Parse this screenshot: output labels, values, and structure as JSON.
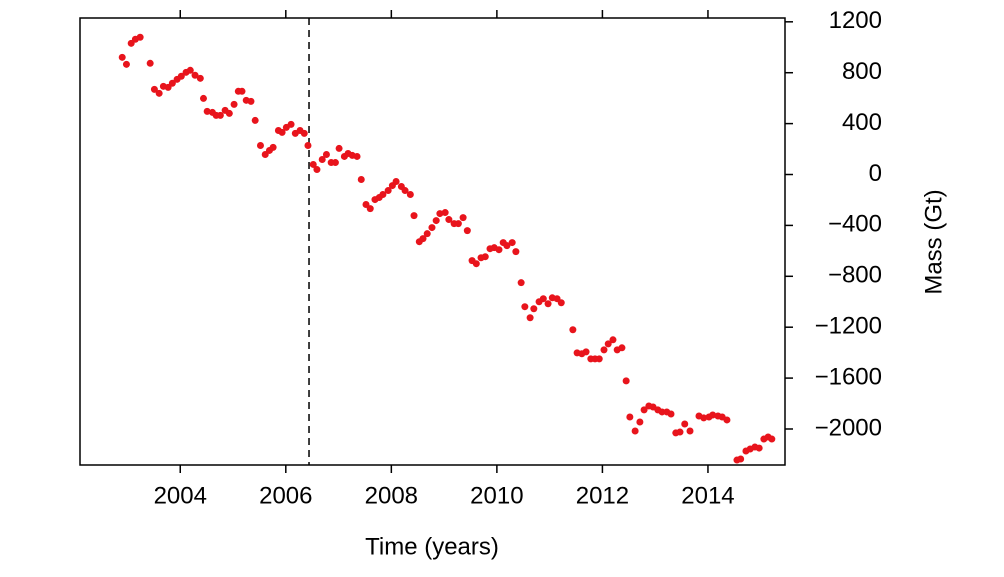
{
  "chart_data": {
    "type": "scatter",
    "x_label": "Time (years)",
    "y_label": "Mass (Gt)",
    "color": "#e8141c",
    "xlim": [
      2002.1,
      2015.46
    ],
    "ylim": [
      -2283,
      1230
    ],
    "xticks": [
      2004,
      2006,
      2008,
      2010,
      2012,
      2014
    ],
    "yticks": [
      {
        "value": -2000,
        "label": "−2000"
      },
      {
        "value": -1600,
        "label": "−1600"
      },
      {
        "value": -1200,
        "label": "−1200"
      },
      {
        "value": -800,
        "label": "−800"
      },
      {
        "value": -400,
        "label": "−400"
      },
      0,
      400,
      800,
      1200
    ],
    "reference_x": 2006.44,
    "x": [
      2002.9,
      2002.98,
      2003.07,
      2003.15,
      2003.24,
      2003.43,
      2003.51,
      2003.6,
      2003.68,
      2003.77,
      2003.85,
      2003.94,
      2004.02,
      2004.11,
      2004.19,
      2004.28,
      2004.38,
      2004.44,
      2004.51,
      2004.61,
      2004.68,
      2004.76,
      2004.85,
      2004.93,
      2005.02,
      2005.1,
      2005.17,
      2005.25,
      2005.34,
      2005.42,
      2005.52,
      2005.61,
      2005.69,
      2005.76,
      2005.86,
      2005.93,
      2006.01,
      2006.1,
      2006.18,
      2006.27,
      2006.35,
      2006.42,
      2006.52,
      2006.59,
      2006.69,
      2006.77,
      2006.86,
      2006.94,
      2007.01,
      2007.11,
      2007.18,
      2007.26,
      2007.35,
      2007.43,
      2007.52,
      2007.6,
      2007.69,
      2007.77,
      2007.84,
      2007.94,
      2008.02,
      2008.09,
      2008.19,
      2008.26,
      2008.36,
      2008.43,
      2008.53,
      2008.6,
      2008.68,
      2008.77,
      2008.85,
      2008.92,
      2009.02,
      2009.09,
      2009.19,
      2009.27,
      2009.36,
      2009.44,
      2009.53,
      2009.61,
      2009.7,
      2009.78,
      2009.87,
      2009.95,
      2010.04,
      2010.12,
      2010.19,
      2010.29,
      2010.36,
      2010.46,
      2010.53,
      2010.63,
      2010.7,
      2010.8,
      2010.88,
      2010.97,
      2011.05,
      2011.14,
      2011.22,
      2011.44,
      2011.52,
      2011.61,
      2011.69,
      2011.78,
      2011.86,
      2011.94,
      2012.03,
      2012.11,
      2012.2,
      2012.28,
      2012.37,
      2012.45,
      2012.52,
      2012.62,
      2012.71,
      2012.79,
      2012.88,
      2012.96,
      2013.05,
      2013.13,
      2013.22,
      2013.3,
      2013.39,
      2013.47,
      2013.56,
      2013.66,
      2013.83,
      2013.92,
      2014.02,
      2014.09,
      2014.19,
      2014.27,
      2014.36,
      2014.55,
      2014.62,
      2014.72,
      2014.8,
      2014.89,
      2014.97,
      2015.06,
      2015.14,
      2015.21
    ],
    "values": [
      921,
      866,
      1031,
      1063,
      1079,
      874,
      669,
      638,
      693,
      685,
      717,
      748,
      772,
      803,
      819,
      780,
      756,
      598,
      496,
      488,
      465,
      465,
      504,
      480,
      551,
      654,
      654,
      583,
      575,
      425,
      228,
      157,
      189,
      213,
      346,
      331,
      370,
      394,
      323,
      346,
      323,
      228,
      79,
      39,
      118,
      157,
      94,
      94,
      205,
      142,
      165,
      150,
      142,
      -39,
      -236,
      -268,
      -197,
      -181,
      -157,
      -126,
      -87,
      -55,
      -94,
      -126,
      -157,
      -323,
      -528,
      -504,
      -465,
      -417,
      -362,
      -307,
      -299,
      -354,
      -386,
      -386,
      -339,
      -441,
      -677,
      -701,
      -654,
      -646,
      -583,
      -575,
      -591,
      -535,
      -559,
      -535,
      -606,
      -850,
      -1039,
      -1126,
      -1055,
      -1000,
      -976,
      -1016,
      -969,
      -976,
      -1008,
      -1220,
      -1402,
      -1409,
      -1394,
      -1449,
      -1449,
      -1449,
      -1378,
      -1331,
      -1299,
      -1378,
      -1362,
      -1622,
      -1906,
      -2016,
      -1945,
      -1850,
      -1819,
      -1827,
      -1850,
      -1866,
      -1866,
      -1882,
      -2031,
      -2024,
      -1961,
      -2016,
      -1898,
      -1913,
      -1906,
      -1890,
      -1898,
      -1906,
      -1929,
      -2244,
      -2236,
      -2173,
      -2157,
      -2142,
      -2150,
      -2079,
      -2063,
      -2079
    ]
  }
}
